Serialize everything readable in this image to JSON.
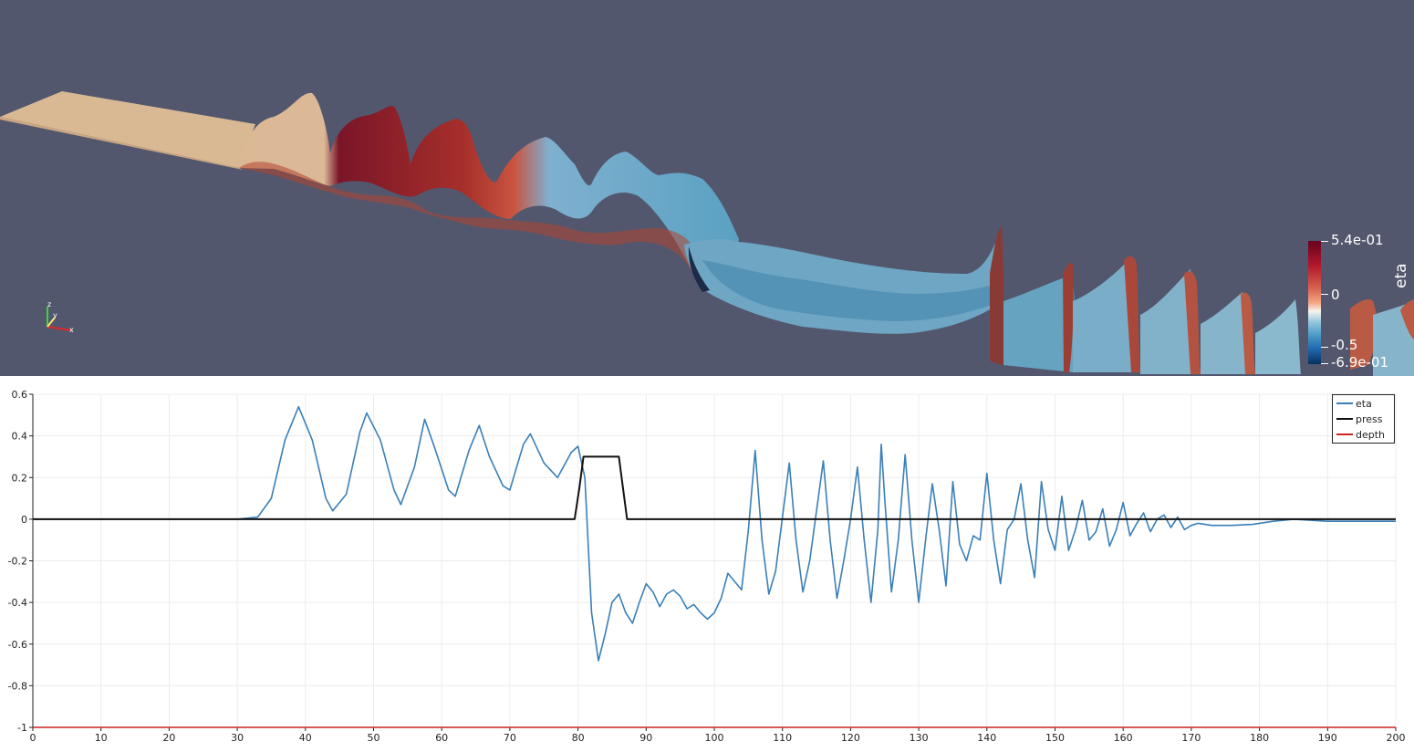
{
  "render_view": {
    "background": "#52576e",
    "colormap": "Cool to Warm (eta)",
    "colorbar": {
      "title": "eta",
      "labels": [
        "5.4e-01",
        "0",
        "-0.5",
        "-6.9e-01"
      ]
    },
    "axes_widget": {
      "labels": [
        "z",
        "y",
        "x"
      ],
      "icon": "orientation-axes-icon"
    }
  },
  "chart_data": {
    "type": "line",
    "xlim": [
      0,
      200
    ],
    "ylim": [
      -1,
      0.6
    ],
    "x_ticks": [
      "0",
      "10",
      "20",
      "30",
      "40",
      "50",
      "60",
      "70",
      "80",
      "90",
      "100",
      "110",
      "120",
      "130",
      "140",
      "150",
      "160",
      "170",
      "180",
      "190",
      "200"
    ],
    "y_ticks": [
      "0.6",
      "0.4",
      "0.2",
      "0",
      "-0.2",
      "-0.4",
      "-0.6",
      "-0.8",
      "-1"
    ],
    "grid": true,
    "legend_position": "top-right",
    "series": [
      {
        "name": "eta",
        "color": "#3a7fb8",
        "points": [
          [
            0,
            0
          ],
          [
            30,
            0
          ],
          [
            33,
            0.01
          ],
          [
            35,
            0.1
          ],
          [
            37,
            0.38
          ],
          [
            39,
            0.54
          ],
          [
            41,
            0.38
          ],
          [
            43,
            0.1
          ],
          [
            44,
            0.04
          ],
          [
            46,
            0.12
          ],
          [
            48,
            0.42
          ],
          [
            49,
            0.51
          ],
          [
            51,
            0.38
          ],
          [
            53,
            0.14
          ],
          [
            54,
            0.07
          ],
          [
            56,
            0.25
          ],
          [
            57.5,
            0.48
          ],
          [
            59,
            0.34
          ],
          [
            61,
            0.14
          ],
          [
            62,
            0.11
          ],
          [
            64,
            0.33
          ],
          [
            65.5,
            0.45
          ],
          [
            67,
            0.3
          ],
          [
            69,
            0.16
          ],
          [
            70,
            0.14
          ],
          [
            72,
            0.36
          ],
          [
            73,
            0.41
          ],
          [
            75,
            0.27
          ],
          [
            77,
            0.2
          ],
          [
            79,
            0.32
          ],
          [
            80,
            0.35
          ],
          [
            81,
            0.2
          ],
          [
            82,
            -0.45
          ],
          [
            83,
            -0.68
          ],
          [
            84,
            -0.55
          ],
          [
            85,
            -0.4
          ],
          [
            86,
            -0.36
          ],
          [
            87,
            -0.45
          ],
          [
            88,
            -0.5
          ],
          [
            89,
            -0.4
          ],
          [
            90,
            -0.31
          ],
          [
            91,
            -0.35
          ],
          [
            92,
            -0.42
          ],
          [
            93,
            -0.36
          ],
          [
            94,
            -0.34
          ],
          [
            95,
            -0.37
          ],
          [
            96,
            -0.43
          ],
          [
            97,
            -0.41
          ],
          [
            98,
            -0.45
          ],
          [
            99,
            -0.48
          ],
          [
            100,
            -0.45
          ],
          [
            101,
            -0.38
          ],
          [
            102,
            -0.26
          ],
          [
            103,
            -0.3
          ],
          [
            104,
            -0.34
          ],
          [
            105,
            -0.05
          ],
          [
            106,
            0.33
          ],
          [
            107,
            -0.1
          ],
          [
            108,
            -0.36
          ],
          [
            109,
            -0.25
          ],
          [
            111,
            0.27
          ],
          [
            112,
            -0.1
          ],
          [
            113,
            -0.35
          ],
          [
            114,
            -0.2
          ],
          [
            116,
            0.28
          ],
          [
            117,
            -0.1
          ],
          [
            118,
            -0.38
          ],
          [
            119,
            -0.2
          ],
          [
            120,
            0.0
          ],
          [
            121,
            0.25
          ],
          [
            122,
            -0.1
          ],
          [
            123,
            -0.4
          ],
          [
            124,
            -0.05
          ],
          [
            124.5,
            0.36
          ],
          [
            125,
            0.1
          ],
          [
            126,
            -0.35
          ],
          [
            127,
            -0.1
          ],
          [
            128,
            0.31
          ],
          [
            129,
            -0.1
          ],
          [
            130,
            -0.4
          ],
          [
            131,
            -0.1
          ],
          [
            132,
            0.17
          ],
          [
            133,
            -0.05
          ],
          [
            134,
            -0.32
          ],
          [
            135,
            0.18
          ],
          [
            136,
            -0.12
          ],
          [
            137,
            -0.2
          ],
          [
            138,
            -0.08
          ],
          [
            139,
            -0.1
          ],
          [
            140,
            0.22
          ],
          [
            141,
            -0.1
          ],
          [
            142,
            -0.31
          ],
          [
            143,
            -0.05
          ],
          [
            144,
            0.0
          ],
          [
            145,
            0.17
          ],
          [
            146,
            -0.1
          ],
          [
            147,
            -0.28
          ],
          [
            148,
            0.18
          ],
          [
            149,
            -0.05
          ],
          [
            150,
            -0.15
          ],
          [
            151,
            0.11
          ],
          [
            152,
            -0.15
          ],
          [
            153,
            -0.05
          ],
          [
            154,
            0.09
          ],
          [
            155,
            -0.1
          ],
          [
            156,
            -0.06
          ],
          [
            157,
            0.05
          ],
          [
            158,
            -0.13
          ],
          [
            159,
            -0.05
          ],
          [
            160,
            0.08
          ],
          [
            161,
            -0.08
          ],
          [
            162,
            -0.02
          ],
          [
            163,
            0.03
          ],
          [
            164,
            -0.06
          ],
          [
            165,
            0.0
          ],
          [
            166,
            0.02
          ],
          [
            167,
            -0.04
          ],
          [
            168,
            0.01
          ],
          [
            169,
            -0.05
          ],
          [
            170,
            -0.03
          ],
          [
            171,
            -0.02
          ],
          [
            173,
            -0.03
          ],
          [
            176,
            -0.03
          ],
          [
            179,
            -0.025
          ],
          [
            182,
            -0.01
          ],
          [
            185,
            0.0
          ],
          [
            190,
            -0.01
          ],
          [
            195,
            -0.01
          ],
          [
            200,
            -0.01
          ]
        ]
      },
      {
        "name": "press",
        "color": "#111111",
        "points": [
          [
            0,
            0
          ],
          [
            79.5,
            0
          ],
          [
            80.2,
            0.15
          ],
          [
            80.8,
            0.3
          ],
          [
            86,
            0.3
          ],
          [
            86.6,
            0.15
          ],
          [
            87.2,
            0
          ],
          [
            200,
            0
          ]
        ]
      },
      {
        "name": "depth",
        "color": "#cc2222",
        "points": [
          [
            0,
            -1
          ],
          [
            200,
            -1
          ]
        ]
      }
    ]
  }
}
